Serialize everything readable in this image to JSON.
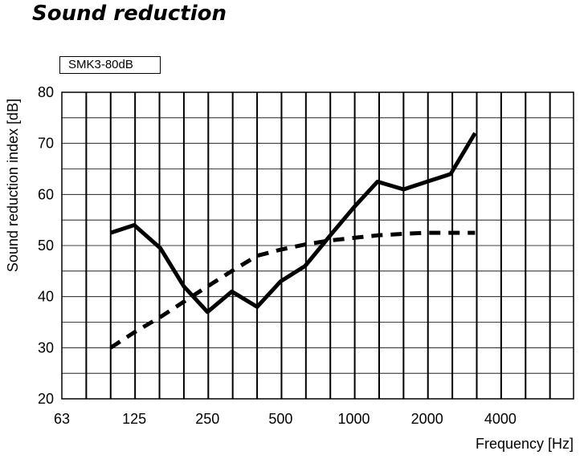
{
  "chart_data": {
    "type": "line",
    "title": "Sound reduction",
    "xlabel": "Frequency [Hz]",
    "ylabel": "Sound reduction index [dB]",
    "xscale": "log",
    "xlim": [
      63,
      8000
    ],
    "ylim": [
      20,
      80
    ],
    "xticks": [
      "63",
      "125",
      "250",
      "500",
      "1000",
      "2000",
      "4000"
    ],
    "yticks": [
      "20",
      "30",
      "40",
      "50",
      "60",
      "70",
      "80"
    ],
    "grid": true,
    "series": [
      {
        "name": "SMK3-80dB",
        "style": "solid",
        "x": [
          100,
          125,
          160,
          200,
          250,
          315,
          400,
          500,
          630,
          800,
          1000,
          1250,
          1600,
          2000,
          2500,
          3150
        ],
        "values": [
          52.5,
          54,
          49.5,
          42,
          37,
          41,
          38,
          43,
          46,
          52,
          57.5,
          62.5,
          61,
          62.5,
          64,
          72
        ]
      },
      {
        "style": "dashed",
        "x": [
          100,
          125,
          160,
          200,
          250,
          315,
          400,
          500,
          630,
          800,
          1000,
          1250,
          1600,
          2000,
          2500,
          3150
        ],
        "values": [
          30,
          33,
          36,
          39,
          42,
          45,
          48,
          49.2,
          50.2,
          51,
          51.5,
          52,
          52.3,
          52.5,
          52.5,
          52.5
        ]
      }
    ],
    "colors": {
      "line": "#000000",
      "grid": "#000000",
      "background": "#ffffff"
    }
  }
}
